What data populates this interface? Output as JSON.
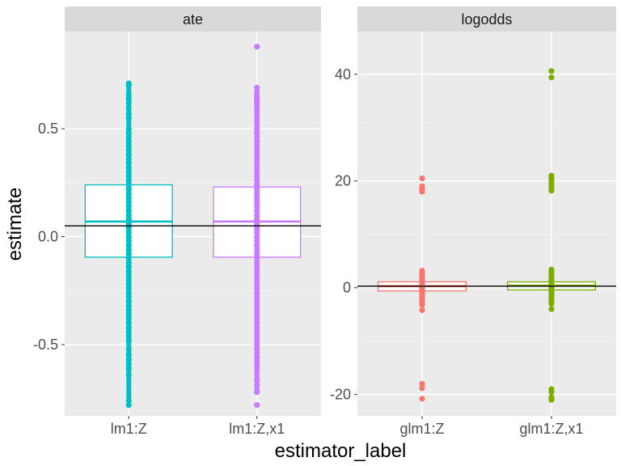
{
  "chart_data": {
    "type": "box+jitter",
    "xlabel": "estimator_label",
    "ylabel": "estimate",
    "grid": true,
    "legend": "none",
    "facets": [
      {
        "name": "ate",
        "ylim": [
          -0.83,
          0.95
        ],
        "yticks": [
          -0.5,
          0.0,
          0.5
        ],
        "ytick_labels": [
          "-0.5",
          "0.0",
          "0.5"
        ],
        "reference_line": 0.05,
        "categories": [
          "lm1:Z",
          "lm1:Z,x1"
        ],
        "boxes": [
          {
            "label": "lm1:Z",
            "color": "#00BFC4",
            "q1": -0.095,
            "median": 0.07,
            "q3": 0.24,
            "points": [
              0.71,
              0.7,
              0.66,
              0.64,
              0.62,
              0.6,
              0.57,
              0.55,
              0.5,
              0.48,
              0.46,
              0.44,
              0.42,
              0.4,
              0.38,
              0.36,
              0.34,
              0.32,
              0.3,
              0.28,
              0.26,
              0.24,
              0.22,
              0.2,
              0.18,
              0.16,
              0.14,
              0.12,
              0.1,
              0.08,
              0.06,
              0.04,
              0.02,
              0.0,
              -0.02,
              -0.04,
              -0.06,
              -0.08,
              -0.1,
              -0.12,
              -0.14,
              -0.16,
              -0.18,
              -0.2,
              -0.22,
              -0.24,
              -0.26,
              -0.28,
              -0.3,
              -0.32,
              -0.34,
              -0.36,
              -0.38,
              -0.4,
              -0.42,
              -0.44,
              -0.46,
              -0.48,
              -0.52,
              -0.55,
              -0.57,
              -0.59,
              -0.61,
              -0.64,
              -0.76,
              -0.78
            ]
          },
          {
            "label": "lm1:Z,x1",
            "color": "#C77CFF",
            "q1": -0.095,
            "median": 0.07,
            "q3": 0.23,
            "points": [
              0.88,
              0.69,
              0.66,
              0.65,
              0.64,
              0.63,
              0.62,
              0.61,
              0.6,
              0.58,
              0.56,
              0.54,
              0.52,
              0.5,
              0.48,
              0.46,
              0.44,
              0.42,
              0.4,
              0.38,
              0.36,
              0.34,
              0.32,
              0.3,
              0.28,
              0.26,
              0.24,
              0.22,
              0.2,
              0.18,
              0.16,
              0.14,
              0.12,
              0.1,
              0.08,
              0.06,
              0.04,
              0.02,
              0.0,
              -0.02,
              -0.04,
              -0.06,
              -0.08,
              -0.1,
              -0.12,
              -0.14,
              -0.16,
              -0.18,
              -0.2,
              -0.22,
              -0.24,
              -0.26,
              -0.28,
              -0.3,
              -0.32,
              -0.34,
              -0.36,
              -0.38,
              -0.4,
              -0.42,
              -0.44,
              -0.46,
              -0.48,
              -0.5,
              -0.52,
              -0.54,
              -0.56,
              -0.58,
              -0.6,
              -0.62,
              -0.66,
              -0.69,
              -0.72,
              -0.78
            ]
          }
        ]
      },
      {
        "name": "logodds",
        "ylim": [
          -24,
          48
        ],
        "yticks": [
          -20,
          0,
          20,
          40
        ],
        "ytick_labels": [
          "-20",
          "0",
          "20",
          "40"
        ],
        "reference_line": 0.3,
        "categories": [
          "glm1:Z",
          "glm1:Z,x1"
        ],
        "boxes": [
          {
            "label": "glm1:Z",
            "color": "#F8766D",
            "q1": -0.6,
            "median": 0.3,
            "q3": 1.1,
            "points": [
              20.5,
              19.0,
              18.5,
              18.0,
              3.2,
              2.8,
              2.4,
              2.0,
              1.6,
              1.2,
              0.8,
              0.4,
              0.0,
              -0.4,
              -0.8,
              -1.2,
              -1.6,
              -2.0,
              -2.4,
              -2.8,
              -3.2,
              -4.2,
              -18.0,
              -18.8,
              -20.8
            ]
          },
          {
            "label": "glm1:Z,x1",
            "color": "#7CAE00",
            "q1": -0.4,
            "median": 0.4,
            "q3": 1.1,
            "points": [
              40.6,
              39.4,
              21.0,
              20.5,
              20.0,
              19.5,
              19.0,
              18.5,
              18.2,
              3.4,
              3.0,
              2.6,
              2.2,
              1.8,
              1.4,
              1.0,
              0.6,
              0.2,
              -0.2,
              -0.6,
              -1.0,
              -1.4,
              -1.8,
              -2.2,
              -2.6,
              -3.0,
              -4.0,
              -19.0,
              -19.5,
              -20.5,
              -21.0
            ]
          }
        ]
      }
    ]
  }
}
